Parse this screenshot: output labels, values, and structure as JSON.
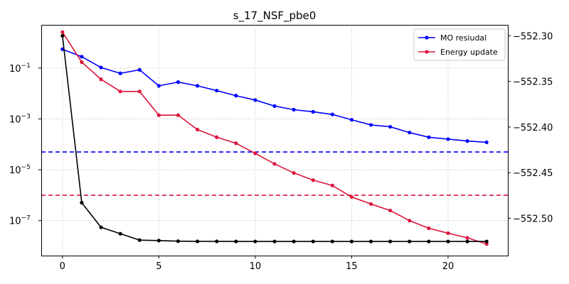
{
  "chart_data": {
    "type": "line",
    "title": "s_17_NSF_pbe0",
    "x": [
      0,
      1,
      2,
      3,
      4,
      5,
      6,
      7,
      8,
      9,
      10,
      11,
      12,
      13,
      14,
      15,
      16,
      17,
      18,
      19,
      20,
      21,
      22
    ],
    "xlim": [
      -1.1,
      23.1
    ],
    "xticks": [
      0,
      5,
      10,
      15,
      20
    ],
    "x_tick_labels": [
      "0",
      "5",
      "10",
      "15",
      "20"
    ],
    "y_left": {
      "scale": "log",
      "lim": [
        4.2e-09,
        5.0
      ],
      "ticks": [
        0.1,
        0.001,
        1e-05,
        1e-07
      ],
      "tick_base": [
        "10",
        "10",
        "10",
        "10"
      ],
      "tick_exp": [
        "−1",
        "−3",
        "−5",
        "−7"
      ]
    },
    "y_right": {
      "scale": "linear",
      "lim": [
        -552.541,
        -552.288
      ],
      "ticks": [
        -552.3,
        -552.35,
        -552.4,
        -552.45,
        -552.5
      ],
      "tick_labels": [
        "−552.30",
        "−552.35",
        "−552.40",
        "−552.45",
        "−552.50"
      ]
    },
    "grid": true,
    "legend_position": "top-right",
    "series": [
      {
        "name": "MO resiudal",
        "axis": "left",
        "color": "#0000ff",
        "marker": true,
        "values": [
          0.55,
          0.28,
          0.105,
          0.062,
          0.085,
          0.02,
          0.028,
          0.02,
          0.013,
          0.0082,
          0.0055,
          0.0032,
          0.0023,
          0.0019,
          0.0015,
          0.00092,
          0.00058,
          0.00049,
          0.00029,
          0.00019,
          0.00016,
          0.000135,
          0.00012
        ]
      },
      {
        "name": "Energy update",
        "axis": "left",
        "color": "#dc143c",
        "marker": true,
        "values": [
          2.6,
          0.17,
          0.036,
          0.012,
          0.012,
          0.0014,
          0.0014,
          0.00038,
          0.00019,
          0.00011,
          4.4e-05,
          1.7e-05,
          7.5e-06,
          3.9e-06,
          2.4e-06,
          8.5e-07,
          4.5e-07,
          2.5e-07,
          1e-07,
          5e-08,
          3.2e-08,
          2.1e-08,
          1.2e-08
        ]
      },
      {
        "axis": "right",
        "color": "#000000",
        "marker": true,
        "values": [
          -552.3,
          -552.483,
          -552.51,
          -552.517,
          -552.524,
          -552.5245,
          -552.5252,
          -552.5254,
          -552.5254,
          -552.5255,
          -552.5255,
          -552.5255,
          -552.5255,
          -552.5255,
          -552.5255,
          -552.5255,
          -552.5255,
          -552.5255,
          -552.5255,
          -552.5255,
          -552.5255,
          -552.5255,
          -552.5255
        ]
      }
    ],
    "threshold_lines": [
      {
        "axis": "left",
        "value": 5e-05,
        "color": "#0000ff",
        "style": "dashed"
      },
      {
        "axis": "left",
        "value": 1e-06,
        "color": "#dc143c",
        "style": "dashed"
      }
    ]
  }
}
